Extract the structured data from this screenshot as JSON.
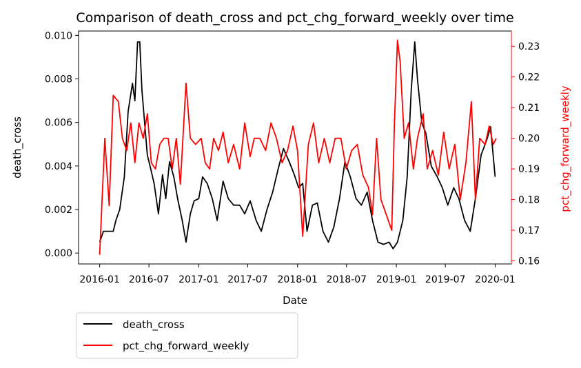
{
  "chart_data": {
    "type": "line",
    "title": "Comparison of death_cross and pct_chg_forward_weekly over time",
    "xlabel": "Date",
    "ylabel_left": "death_cross",
    "ylabel_right": "pct_chg_forward_weekly",
    "xlim": [
      "2015-10-15",
      "2020-03-01"
    ],
    "ylim_left": [
      -0.0005,
      0.0102
    ],
    "ylim_right": [
      0.159,
      0.235
    ],
    "x_ticks": [
      "2016-01",
      "2016-07",
      "2017-01",
      "2017-07",
      "2018-01",
      "2018-07",
      "2019-01",
      "2019-07",
      "2020-01"
    ],
    "y_ticks_left": [
      "0.000",
      "0.002",
      "0.004",
      "0.006",
      "0.008",
      "0.010"
    ],
    "y_ticks_right": [
      "0.16",
      "0.17",
      "0.18",
      "0.19",
      "0.20",
      "0.21",
      "0.22",
      "0.23"
    ],
    "grid": false,
    "legend_placement": "below-left",
    "series": [
      {
        "name": "death_cross",
        "axis": "left",
        "color": "#000000",
        "points": [
          [
            "2016-01-01",
            0.0005
          ],
          [
            "2016-01-15",
            0.001
          ],
          [
            "2016-02-01",
            0.001
          ],
          [
            "2016-02-20",
            0.001
          ],
          [
            "2016-03-01",
            0.0015
          ],
          [
            "2016-03-15",
            0.002
          ],
          [
            "2016-04-01",
            0.0035
          ],
          [
            "2016-04-15",
            0.0065
          ],
          [
            "2016-05-01",
            0.0078
          ],
          [
            "2016-05-10",
            0.007
          ],
          [
            "2016-05-20",
            0.0097
          ],
          [
            "2016-05-28",
            0.0097
          ],
          [
            "2016-06-05",
            0.0075
          ],
          [
            "2016-06-15",
            0.006
          ],
          [
            "2016-06-25",
            0.0045
          ],
          [
            "2016-07-05",
            0.004
          ],
          [
            "2016-07-20",
            0.0032
          ],
          [
            "2016-08-05",
            0.0018
          ],
          [
            "2016-08-20",
            0.0036
          ],
          [
            "2016-09-01",
            0.0025
          ],
          [
            "2016-09-15",
            0.0042
          ],
          [
            "2016-10-01",
            0.0035
          ],
          [
            "2016-10-15",
            0.0025
          ],
          [
            "2016-11-01",
            0.0015
          ],
          [
            "2016-11-15",
            0.0005
          ],
          [
            "2016-12-01",
            0.0018
          ],
          [
            "2016-12-15",
            0.0024
          ],
          [
            "2017-01-01",
            0.0025
          ],
          [
            "2017-01-15",
            0.0035
          ],
          [
            "2017-02-01",
            0.0032
          ],
          [
            "2017-02-20",
            0.0025
          ],
          [
            "2017-03-10",
            0.0015
          ],
          [
            "2017-04-01",
            0.0033
          ],
          [
            "2017-04-20",
            0.0025
          ],
          [
            "2017-05-10",
            0.0022
          ],
          [
            "2017-06-01",
            0.0022
          ],
          [
            "2017-06-20",
            0.0018
          ],
          [
            "2017-07-10",
            0.0024
          ],
          [
            "2017-08-01",
            0.0015
          ],
          [
            "2017-08-20",
            0.001
          ],
          [
            "2017-09-10",
            0.002
          ],
          [
            "2017-10-01",
            0.0028
          ],
          [
            "2017-10-20",
            0.0038
          ],
          [
            "2017-11-10",
            0.0048
          ],
          [
            "2017-12-01",
            0.0042
          ],
          [
            "2017-12-20",
            0.0036
          ],
          [
            "2018-01-05",
            0.003
          ],
          [
            "2018-01-20",
            0.0032
          ],
          [
            "2018-02-05",
            0.001
          ],
          [
            "2018-02-25",
            0.0022
          ],
          [
            "2018-03-15",
            0.0023
          ],
          [
            "2018-04-05",
            0.001
          ],
          [
            "2018-04-25",
            0.0005
          ],
          [
            "2018-05-15",
            0.0012
          ],
          [
            "2018-06-05",
            0.0025
          ],
          [
            "2018-06-25",
            0.0042
          ],
          [
            "2018-07-15",
            0.0035
          ],
          [
            "2018-08-05",
            0.0025
          ],
          [
            "2018-08-25",
            0.0022
          ],
          [
            "2018-09-15",
            0.0028
          ],
          [
            "2018-10-05",
            0.0015
          ],
          [
            "2018-10-25",
            0.0005
          ],
          [
            "2018-11-15",
            0.0004
          ],
          [
            "2018-12-05",
            0.0005
          ],
          [
            "2018-12-20",
            0.0002
          ],
          [
            "2019-01-05",
            0.0005
          ],
          [
            "2019-01-25",
            0.0015
          ],
          [
            "2019-02-10",
            0.0035
          ],
          [
            "2019-02-25",
            0.0075
          ],
          [
            "2019-03-10",
            0.0097
          ],
          [
            "2019-03-20",
            0.008
          ],
          [
            "2019-04-05",
            0.006
          ],
          [
            "2019-04-20",
            0.0055
          ],
          [
            "2019-05-10",
            0.004
          ],
          [
            "2019-06-01",
            0.0035
          ],
          [
            "2019-06-20",
            0.003
          ],
          [
            "2019-07-10",
            0.0022
          ],
          [
            "2019-08-01",
            0.003
          ],
          [
            "2019-08-20",
            0.0025
          ],
          [
            "2019-09-10",
            0.0015
          ],
          [
            "2019-10-01",
            0.001
          ],
          [
            "2019-10-20",
            0.0025
          ],
          [
            "2019-11-10",
            0.0045
          ],
          [
            "2019-12-01",
            0.0052
          ],
          [
            "2019-12-15",
            0.0058
          ],
          [
            "2020-01-01",
            0.0035
          ]
        ]
      },
      {
        "name": "pct_chg_forward_weekly",
        "axis": "right",
        "color": "#ff0000",
        "points": [
          [
            "2016-01-01",
            0.162
          ],
          [
            "2016-01-20",
            0.2
          ],
          [
            "2016-02-05",
            0.178
          ],
          [
            "2016-02-20",
            0.214
          ],
          [
            "2016-03-10",
            0.212
          ],
          [
            "2016-03-25",
            0.2
          ],
          [
            "2016-04-10",
            0.196
          ],
          [
            "2016-04-25",
            0.205
          ],
          [
            "2016-05-10",
            0.192
          ],
          [
            "2016-05-25",
            0.205
          ],
          [
            "2016-06-10",
            0.2
          ],
          [
            "2016-06-25",
            0.208
          ],
          [
            "2016-07-10",
            0.192
          ],
          [
            "2016-07-25",
            0.19
          ],
          [
            "2016-08-10",
            0.198
          ],
          [
            "2016-08-25",
            0.2
          ],
          [
            "2016-09-10",
            0.2
          ],
          [
            "2016-09-25",
            0.19
          ],
          [
            "2016-10-10",
            0.2
          ],
          [
            "2016-10-25",
            0.185
          ],
          [
            "2016-11-15",
            0.218
          ],
          [
            "2016-12-01",
            0.2
          ],
          [
            "2016-12-20",
            0.198
          ],
          [
            "2017-01-10",
            0.2
          ],
          [
            "2017-01-25",
            0.192
          ],
          [
            "2017-02-10",
            0.19
          ],
          [
            "2017-02-25",
            0.2
          ],
          [
            "2017-03-15",
            0.196
          ],
          [
            "2017-04-01",
            0.202
          ],
          [
            "2017-04-20",
            0.192
          ],
          [
            "2017-05-10",
            0.198
          ],
          [
            "2017-06-01",
            0.19
          ],
          [
            "2017-06-20",
            0.205
          ],
          [
            "2017-07-10",
            0.194
          ],
          [
            "2017-07-25",
            0.2
          ],
          [
            "2017-08-15",
            0.2
          ],
          [
            "2017-09-05",
            0.196
          ],
          [
            "2017-09-25",
            0.205
          ],
          [
            "2017-10-15",
            0.2
          ],
          [
            "2017-11-05",
            0.192
          ],
          [
            "2017-11-25",
            0.196
          ],
          [
            "2017-12-15",
            0.204
          ],
          [
            "2018-01-01",
            0.196
          ],
          [
            "2018-01-20",
            0.168
          ],
          [
            "2018-02-10",
            0.198
          ],
          [
            "2018-03-01",
            0.205
          ],
          [
            "2018-03-20",
            0.192
          ],
          [
            "2018-04-10",
            0.2
          ],
          [
            "2018-04-30",
            0.192
          ],
          [
            "2018-05-20",
            0.2
          ],
          [
            "2018-06-10",
            0.2
          ],
          [
            "2018-06-30",
            0.19
          ],
          [
            "2018-07-20",
            0.196
          ],
          [
            "2018-08-10",
            0.198
          ],
          [
            "2018-08-30",
            0.188
          ],
          [
            "2018-09-20",
            0.184
          ],
          [
            "2018-10-05",
            0.175
          ],
          [
            "2018-10-20",
            0.2
          ],
          [
            "2018-11-05",
            0.18
          ],
          [
            "2018-11-25",
            0.175
          ],
          [
            "2018-12-15",
            0.17
          ],
          [
            "2018-12-25",
            0.205
          ],
          [
            "2019-01-05",
            0.232
          ],
          [
            "2019-01-15",
            0.225
          ],
          [
            "2019-01-30",
            0.2
          ],
          [
            "2019-02-15",
            0.205
          ],
          [
            "2019-03-05",
            0.19
          ],
          [
            "2019-03-20",
            0.2
          ],
          [
            "2019-04-10",
            0.208
          ],
          [
            "2019-04-25",
            0.19
          ],
          [
            "2019-05-15",
            0.196
          ],
          [
            "2019-06-05",
            0.188
          ],
          [
            "2019-06-25",
            0.202
          ],
          [
            "2019-07-15",
            0.19
          ],
          [
            "2019-08-05",
            0.198
          ],
          [
            "2019-08-25",
            0.18
          ],
          [
            "2019-09-15",
            0.192
          ],
          [
            "2019-10-05",
            0.212
          ],
          [
            "2019-10-20",
            0.18
          ],
          [
            "2019-11-05",
            0.2
          ],
          [
            "2019-11-25",
            0.198
          ],
          [
            "2019-12-10",
            0.204
          ],
          [
            "2019-12-25",
            0.198
          ],
          [
            "2020-01-05",
            0.2
          ]
        ]
      }
    ]
  }
}
